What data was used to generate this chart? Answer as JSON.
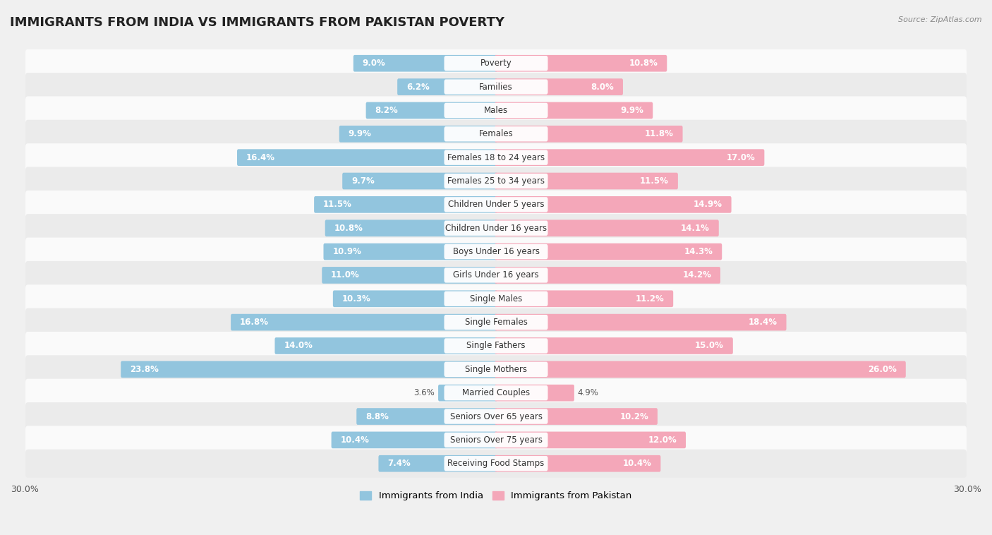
{
  "title": "IMMIGRANTS FROM INDIA VS IMMIGRANTS FROM PAKISTAN POVERTY",
  "source": "Source: ZipAtlas.com",
  "categories": [
    "Poverty",
    "Families",
    "Males",
    "Females",
    "Females 18 to 24 years",
    "Females 25 to 34 years",
    "Children Under 5 years",
    "Children Under 16 years",
    "Boys Under 16 years",
    "Girls Under 16 years",
    "Single Males",
    "Single Females",
    "Single Fathers",
    "Single Mothers",
    "Married Couples",
    "Seniors Over 65 years",
    "Seniors Over 75 years",
    "Receiving Food Stamps"
  ],
  "india_values": [
    9.0,
    6.2,
    8.2,
    9.9,
    16.4,
    9.7,
    11.5,
    10.8,
    10.9,
    11.0,
    10.3,
    16.8,
    14.0,
    23.8,
    3.6,
    8.8,
    10.4,
    7.4
  ],
  "pakistan_values": [
    10.8,
    8.0,
    9.9,
    11.8,
    17.0,
    11.5,
    14.9,
    14.1,
    14.3,
    14.2,
    11.2,
    18.4,
    15.0,
    26.0,
    4.9,
    10.2,
    12.0,
    10.4
  ],
  "india_color": "#92c5de",
  "pakistan_color": "#f4a7b9",
  "india_color_dark": "#5b9ec9",
  "pakistan_color_dark": "#e87fa0",
  "background_color": "#f0f0f0",
  "row_color_light": "#fafafa",
  "row_color_dark": "#ebebeb",
  "axis_limit": 30.0,
  "bar_height": 0.55,
  "legend_india": "Immigrants from India",
  "legend_pakistan": "Immigrants from Pakistan",
  "title_fontsize": 13,
  "label_fontsize": 8.5,
  "value_fontsize": 8.5
}
